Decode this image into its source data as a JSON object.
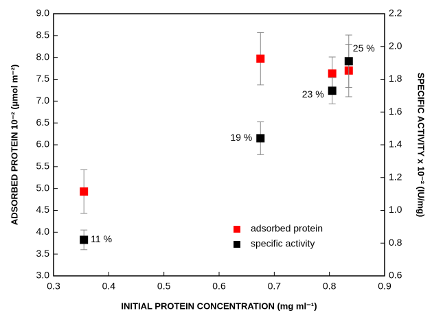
{
  "chart_data": {
    "type": "scatter",
    "x_label": "INITIAL PROTEIN CONCENTRATION (mg ml⁻¹)",
    "y_label": "ADSORBED PROTEIN 10⁻² (µmol m⁻²)",
    "y2_label": "SPECIFIC ACTIVITY x 10⁻² (IU/mg)",
    "xlim": [
      0.3,
      0.9
    ],
    "xticks": [
      0.3,
      0.4,
      0.5,
      0.6,
      0.7,
      0.8,
      0.9
    ],
    "ylim": [
      3.0,
      9.0
    ],
    "yticks": [
      {
        "value": 3.0,
        "label": "3.0"
      },
      {
        "value": 3.5,
        "label": "3.5"
      },
      {
        "value": 4.0,
        "label": "4.0"
      },
      {
        "value": 4.5,
        "label": "4.5"
      },
      {
        "value": 5.0,
        "label": "5.0"
      },
      {
        "value": 5.5,
        "label": "5.5"
      },
      {
        "value": 6.0,
        "label": "6.0"
      },
      {
        "value": 6.5,
        "label": "6.5"
      },
      {
        "value": 7.0,
        "label": "7.0"
      },
      {
        "value": 7.5,
        "label": "7.5"
      },
      {
        "value": 8.0,
        "label": "8.0"
      },
      {
        "value": 8.5,
        "label": "8.5"
      },
      {
        "value": 9.0,
        "label": "9.0"
      }
    ],
    "y2lim": [
      0.6,
      2.2
    ],
    "y2ticks": [
      {
        "value": 0.6,
        "label": "0.6"
      },
      {
        "value": 0.8,
        "label": "0.8"
      },
      {
        "value": 1.0,
        "label": "1.0"
      },
      {
        "value": 1.2,
        "label": "1.2"
      },
      {
        "value": 1.4,
        "label": "1.4"
      },
      {
        "value": 1.6,
        "label": "1.6"
      },
      {
        "value": 1.8,
        "label": "1.8"
      },
      {
        "value": 2.0,
        "label": "2.0"
      },
      {
        "value": 2.2,
        "label": "2.2"
      }
    ],
    "legend": "lower right",
    "series": [
      {
        "name": "adsorbed protein",
        "color": "#ff0000",
        "x": [
          0.355,
          0.675,
          0.805,
          0.835
        ],
        "values": [
          4.93,
          7.97,
          7.63,
          7.7
        ],
        "errors": [
          0.5,
          0.6,
          0.38,
          0.6
        ]
      },
      {
        "name": "specific activity",
        "color": "#000000",
        "axis": "y2",
        "x": [
          0.355,
          0.675,
          0.805,
          0.835
        ],
        "values": [
          0.82,
          1.44,
          1.73,
          1.91
        ],
        "errors": [
          0.06,
          0.1,
          0.08,
          0.16
        ],
        "annotations": [
          "11 %",
          "19 %",
          "23 %",
          "25 %"
        ]
      }
    ]
  }
}
